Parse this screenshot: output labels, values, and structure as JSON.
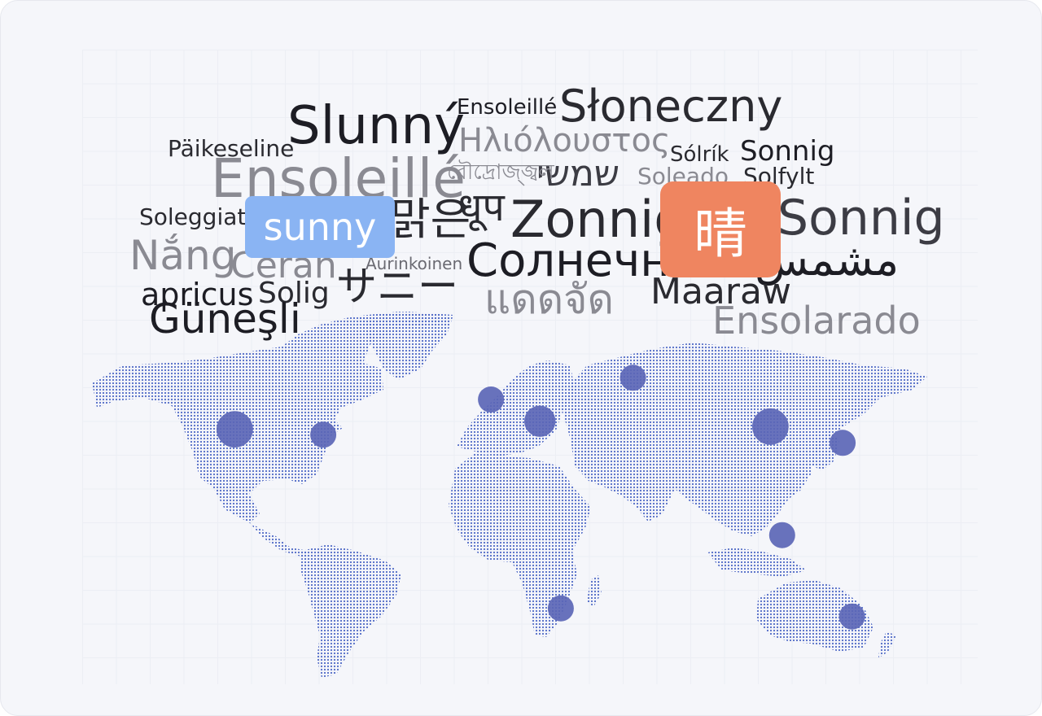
{
  "colors": {
    "background": "#f5f6fa",
    "map_dots": "#4f69c6",
    "markers": "#5b66b6",
    "dark_text": "#1d1d24",
    "gray_text": "#8a8a92",
    "sunny_chip": "#8ab4f3",
    "qing_chip": "#ef8560"
  },
  "chips": {
    "english": "sunny",
    "chinese": "晴"
  },
  "words": [
    "Ensoleillé",
    "Słoneczny",
    "Slunný",
    "Ηλιόλουστος",
    "Päikeseline",
    "Sólrík",
    "Sonnig",
    "שמשי",
    "রৌদ্রোজ্জ্বল",
    "Soleado",
    "Solfylt",
    "Ensoleillé",
    "Soleggiato",
    "맑은",
    "धूप",
    "Zonnig",
    "Sonnig",
    "Nắng",
    "Cerah",
    "Aurinkoinen",
    "Солнечно",
    "مشمس",
    "apricus",
    "Solig",
    "サニー",
    "แดดจัด",
    "Maaraw",
    "Güneşli",
    "Ensolarado"
  ],
  "markers": [
    {
      "name": "north-america-west",
      "lon": -118,
      "lat": 36,
      "weight": 1.4
    },
    {
      "name": "north-america-east",
      "lon": -80,
      "lat": 34,
      "weight": 1.0
    },
    {
      "name": "western-europe",
      "lon": -8,
      "lat": 47,
      "weight": 1.0
    },
    {
      "name": "central-europe",
      "lon": 13,
      "lat": 39,
      "weight": 1.2
    },
    {
      "name": "russia",
      "lon": 53,
      "lat": 55,
      "weight": 1.0
    },
    {
      "name": "china",
      "lon": 112,
      "lat": 37,
      "weight": 1.4
    },
    {
      "name": "japan",
      "lon": 143,
      "lat": 31,
      "weight": 1.0
    },
    {
      "name": "indonesia",
      "lon": 117,
      "lat": -3,
      "weight": 1.0
    },
    {
      "name": "south-africa",
      "lon": 22,
      "lat": -30,
      "weight": 1.0
    },
    {
      "name": "australia",
      "lon": 147,
      "lat": -33,
      "weight": 1.0
    }
  ]
}
